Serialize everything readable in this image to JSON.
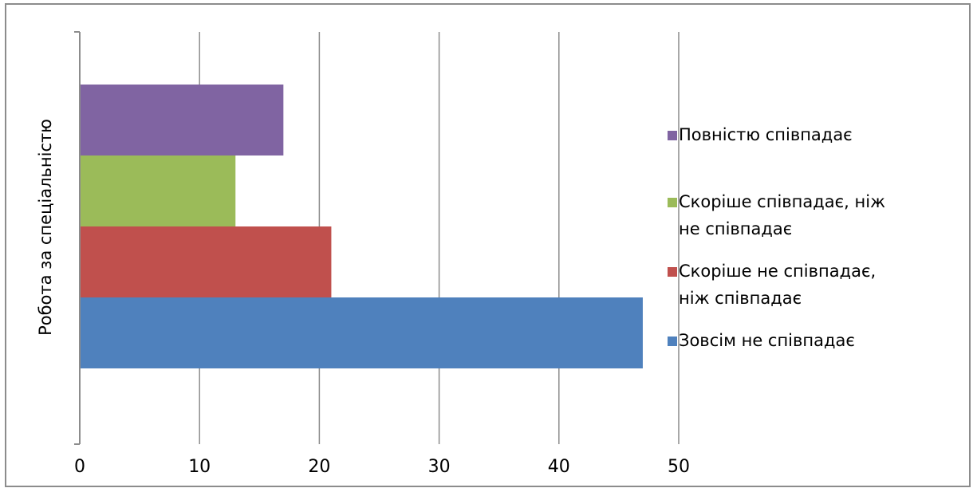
{
  "chart_data": {
    "type": "bar",
    "orientation": "horizontal",
    "grouped": true,
    "categories": [
      "Робота за спеціальністю"
    ],
    "ylabel": "Робота за спеціальністю",
    "xlabel": "",
    "xlim": [
      0,
      50
    ],
    "xticks": [
      "0",
      "10",
      "20",
      "30",
      "40",
      "50"
    ],
    "grid": "vertical",
    "legend_position": "right",
    "series": [
      {
        "name": "Повністю співпадає",
        "values": [
          17
        ],
        "color": "#8064A2",
        "legend_lines": [
          "Повністю співпадає"
        ]
      },
      {
        "name": "Скоріше співпадає, ніж не співпадає",
        "values": [
          13
        ],
        "color": "#9BBB59",
        "legend_lines": [
          "Скоріше співпадає, ніж",
          "не співпадає"
        ]
      },
      {
        "name": "Скоріше не співпадає, ніж співпадає",
        "values": [
          21
        ],
        "color": "#C0504D",
        "legend_lines": [
          "Скоріше не співпадає,",
          "ніж співпадає"
        ]
      },
      {
        "name": "Зовсім не співпадає",
        "values": [
          47
        ],
        "color": "#4F81BD",
        "legend_lines": [
          "Зовсім не співпадає"
        ]
      }
    ]
  }
}
